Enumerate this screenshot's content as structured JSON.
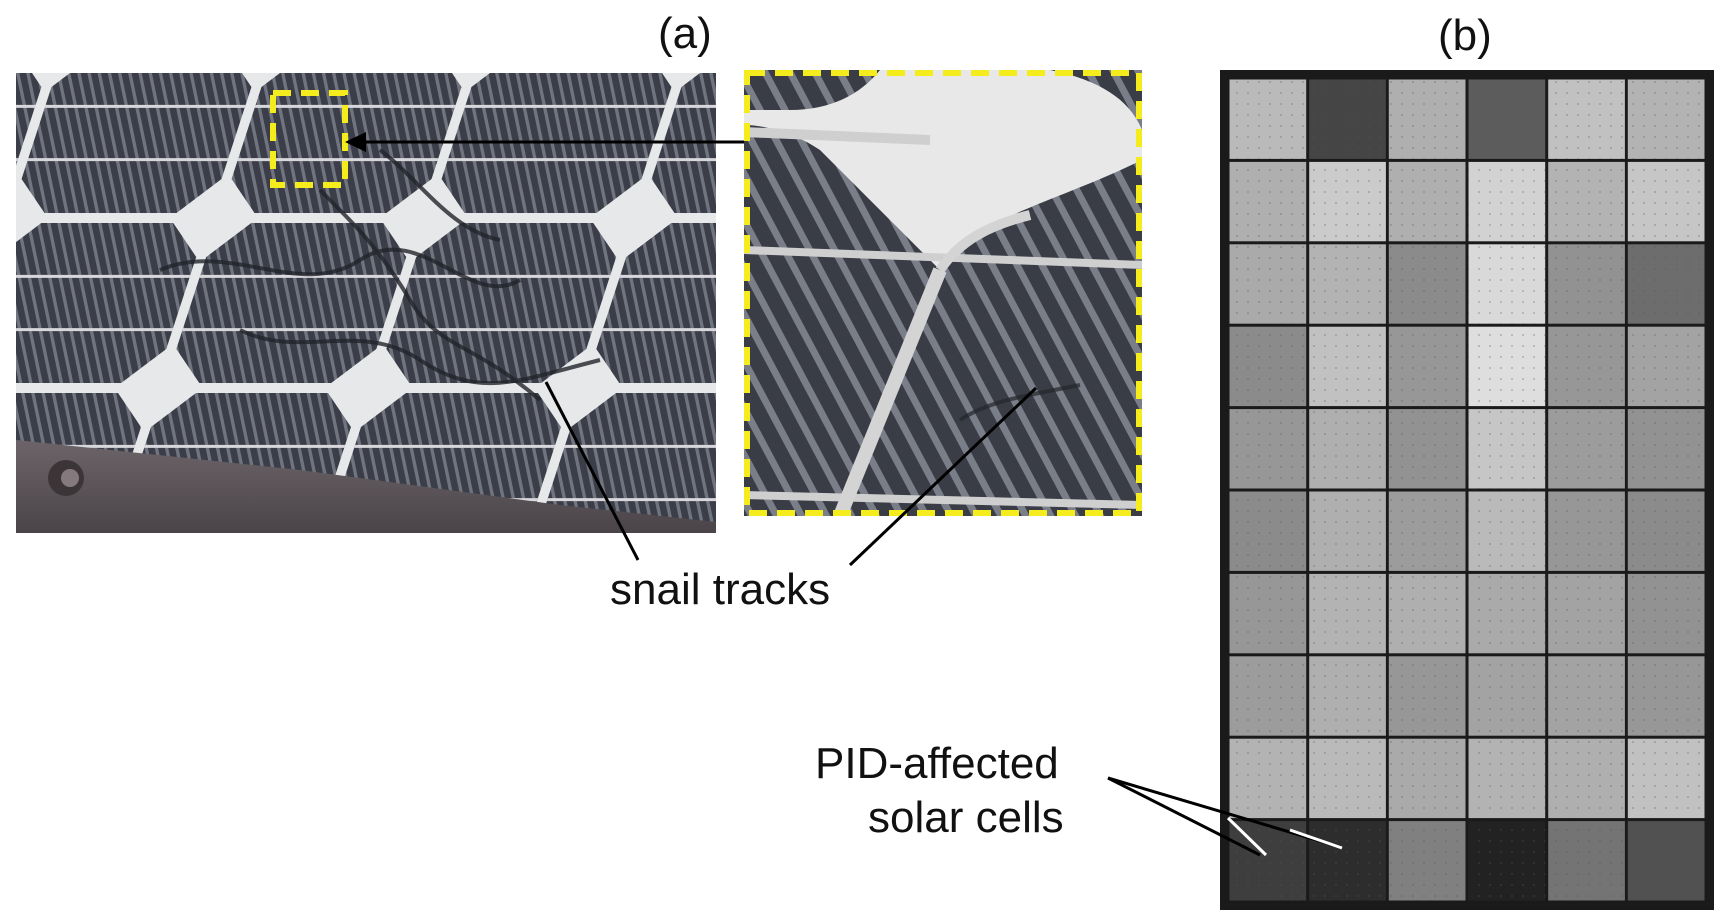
{
  "panel_a": {
    "label": "(a)",
    "photo": {
      "description_icon": "solar-panel-photo"
    },
    "zoom": {
      "box_color": "#f5ec1e"
    },
    "annotation": "snail tracks"
  },
  "panel_b": {
    "label": "(b)",
    "el_image": {
      "rows": 10,
      "cols": 6
    },
    "annotation_line1": "PID-affected",
    "annotation_line2": "solar cells",
    "cell_brightness": [
      [
        0.75,
        0.25,
        0.7,
        0.35,
        0.78,
        0.72
      ],
      [
        0.7,
        0.82,
        0.7,
        0.85,
        0.72,
        0.8
      ],
      [
        0.68,
        0.72,
        0.55,
        0.88,
        0.58,
        0.42
      ],
      [
        0.55,
        0.78,
        0.6,
        0.9,
        0.6,
        0.65
      ],
      [
        0.6,
        0.7,
        0.58,
        0.8,
        0.62,
        0.58
      ],
      [
        0.55,
        0.7,
        0.62,
        0.75,
        0.6,
        0.55
      ],
      [
        0.6,
        0.72,
        0.7,
        0.68,
        0.65,
        0.58
      ],
      [
        0.62,
        0.7,
        0.6,
        0.65,
        0.65,
        0.6
      ],
      [
        0.72,
        0.75,
        0.68,
        0.72,
        0.7,
        0.78
      ],
      [
        0.22,
        0.15,
        0.5,
        0.1,
        0.45,
        0.3
      ]
    ]
  }
}
